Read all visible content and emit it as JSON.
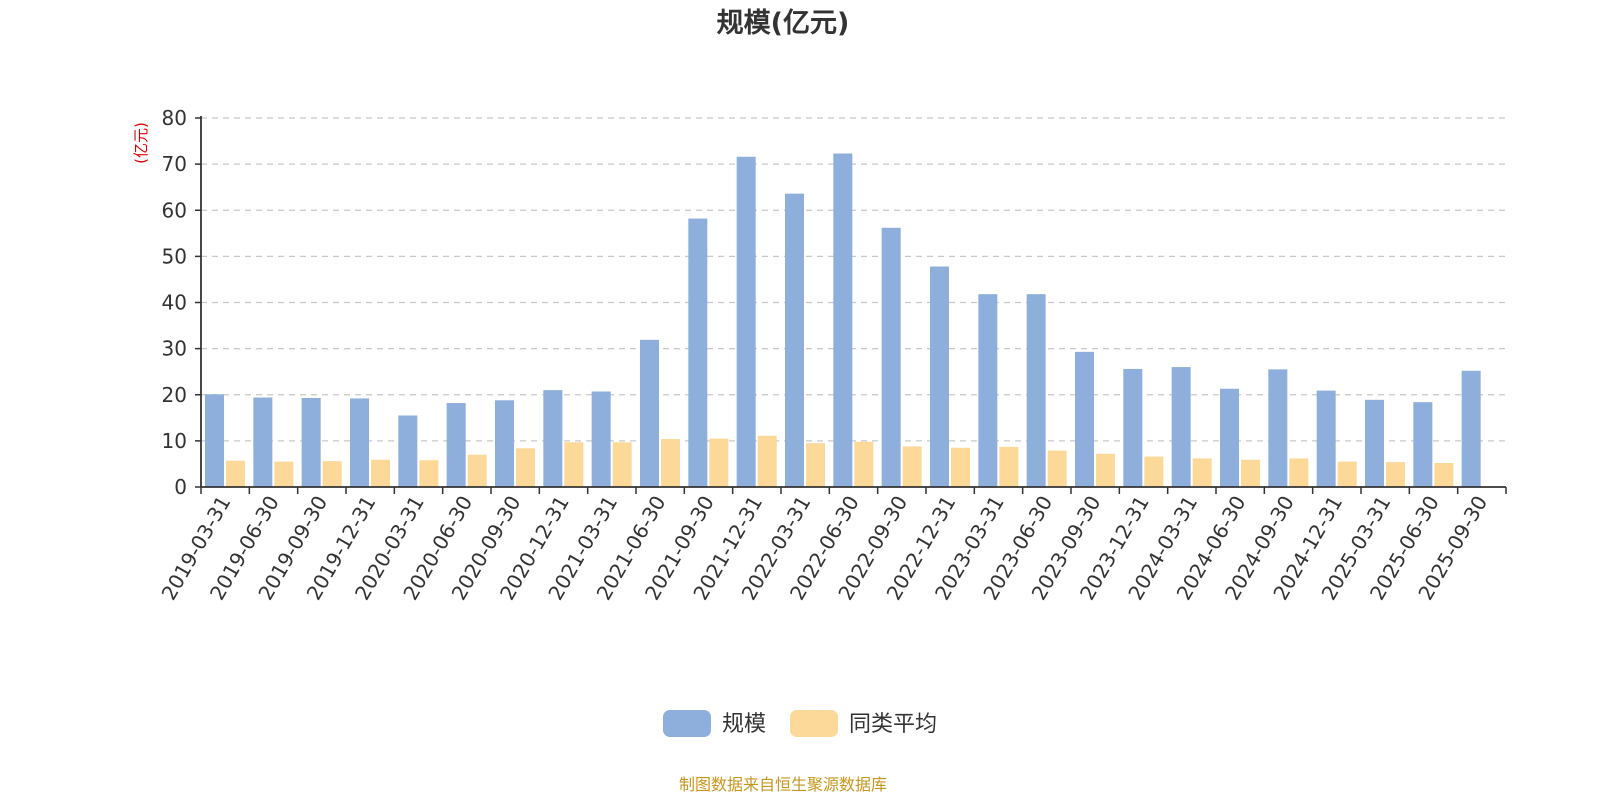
{
  "chart_data": {
    "type": "bar",
    "title": "规模(亿元)",
    "ylabel": "(亿元)",
    "xlabel": "",
    "ylim": [
      0,
      80
    ],
    "yticks": [
      0,
      10,
      20,
      30,
      40,
      50,
      60,
      70,
      80
    ],
    "grid": true,
    "legend_position": "bottom",
    "categories": [
      "2019-03-31",
      "2019-06-30",
      "2019-09-30",
      "2019-12-31",
      "2020-03-31",
      "2020-06-30",
      "2020-09-30",
      "2020-12-31",
      "2021-03-31",
      "2021-06-30",
      "2021-09-30",
      "2021-12-31",
      "2022-03-31",
      "2022-06-30",
      "2022-09-30",
      "2022-12-31",
      "2023-03-31",
      "2023-06-30",
      "2023-09-30",
      "2023-12-31",
      "2024-03-31",
      "2024-06-30",
      "2024-09-30",
      "2024-12-31",
      "2025-03-31",
      "2025-06-30",
      "2025-09-30"
    ],
    "series": [
      {
        "name": "规模",
        "color": "#8eaedb",
        "values": [
          20.1,
          19.4,
          19.3,
          19.2,
          15.5,
          18.2,
          18.8,
          21.0,
          20.7,
          31.9,
          58.2,
          71.6,
          63.6,
          72.3,
          56.2,
          47.8,
          41.8,
          41.8,
          29.3,
          25.6,
          26.0,
          21.3,
          25.5,
          20.9,
          18.9,
          18.4,
          25.2
        ]
      },
      {
        "name": "同类平均",
        "color": "#fcd899",
        "values": [
          5.7,
          5.5,
          5.6,
          5.9,
          5.8,
          7.0,
          8.4,
          9.7,
          9.7,
          10.4,
          10.5,
          11.1,
          9.5,
          9.8,
          8.8,
          8.5,
          8.7,
          7.9,
          7.2,
          6.6,
          6.2,
          5.9,
          6.2,
          5.5,
          5.4,
          5.2,
          null
        ]
      }
    ]
  },
  "footer": {
    "source": "制图数据来自恒生聚源数据库"
  }
}
